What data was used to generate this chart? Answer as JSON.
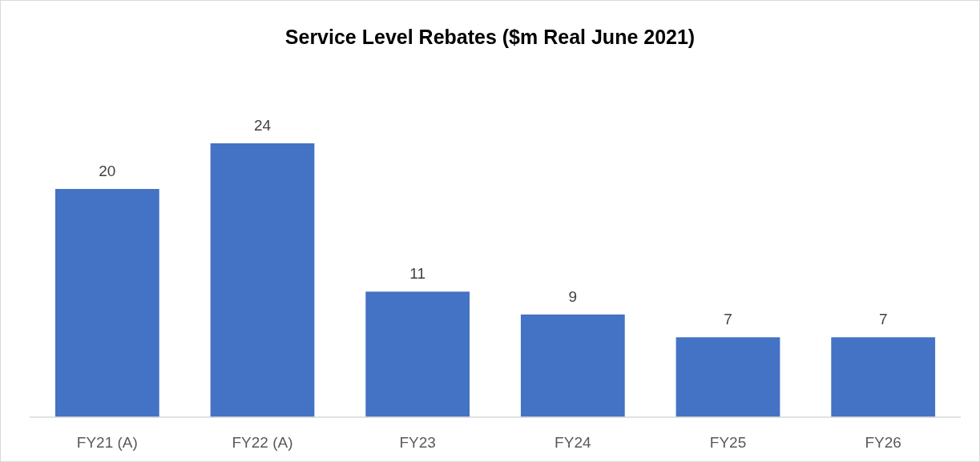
{
  "chart_data": {
    "type": "bar",
    "title": "Service Level Rebates ($m Real June 2021)",
    "categories": [
      "FY21 (A)",
      "FY22 (A)",
      "FY23",
      "FY24",
      "FY25",
      "FY26"
    ],
    "values": [
      20,
      24,
      11,
      9,
      7,
      7
    ],
    "color": "#4472c4",
    "data_labels": true
  }
}
